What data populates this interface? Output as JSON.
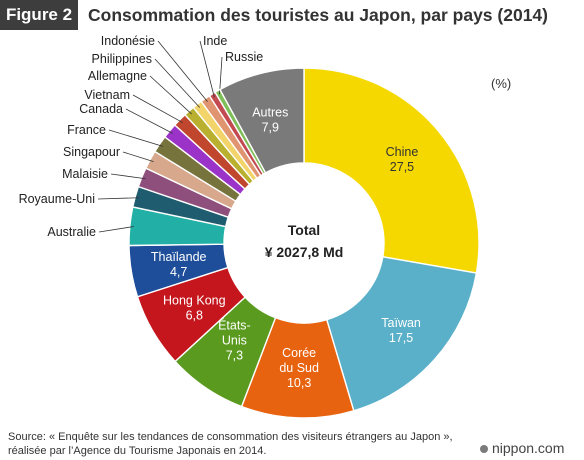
{
  "header": {
    "figure_label": "Figure 2",
    "title": "Consommation des touristes au Japon, par pays (2014)"
  },
  "unit_note": "(%)",
  "center": {
    "label": "Total",
    "value": "¥ 2027,8 Md"
  },
  "source": "Source: « Enquête sur les tendances de consommation des visiteurs étrangers au Japon », réalisée par l’Agence du Tourisme Japonais en 2014.",
  "logo": "nippon.com",
  "chart_data": {
    "type": "pie",
    "title": "Consommation des touristes au Japon, par pays (2014)",
    "unit": "%",
    "total_label": "Total",
    "total_value": "¥ 2027,8 Md",
    "slices": [
      {
        "name": "Chine",
        "value": 27.5,
        "label": "27,5",
        "color": "#f5d800"
      },
      {
        "name": "Taïwan",
        "value": 17.5,
        "label": "17,5",
        "color": "#5aafc9"
      },
      {
        "name": "Corée du Sud",
        "value": 10.3,
        "label": "10,3",
        "color": "#e8630f"
      },
      {
        "name": "États-Unis",
        "value": 7.3,
        "label": "7,3",
        "color": "#5a9a1e"
      },
      {
        "name": "Hong Kong",
        "value": 6.8,
        "label": "6,8",
        "color": "#c4161c"
      },
      {
        "name": "Thaïlande",
        "value": 4.7,
        "label": "4,7",
        "color": "#1e4e9a"
      },
      {
        "name": "Australie",
        "value": 3.5,
        "color": "#22b0a6"
      },
      {
        "name": "Royaume-Uni",
        "value": 1.9,
        "color": "#1f5c70"
      },
      {
        "name": "Malaisie",
        "value": 1.8,
        "color": "#8f4f7d"
      },
      {
        "name": "Singapour",
        "value": 1.7,
        "color": "#d7a88c"
      },
      {
        "name": "France",
        "value": 1.6,
        "color": "#77733c"
      },
      {
        "name": "Canada",
        "value": 1.4,
        "color": "#9b33c8"
      },
      {
        "name": "Vietnam",
        "value": 1.3,
        "color": "#c0462e"
      },
      {
        "name": "Allemagne",
        "value": 1.0,
        "color": "#b8b02e"
      },
      {
        "name": "Philippines",
        "value": 0.9,
        "color": "#f2d46a"
      },
      {
        "name": "Indonésie",
        "value": 0.9,
        "color": "#e09570"
      },
      {
        "name": "Inde",
        "value": 0.6,
        "color": "#c24a50"
      },
      {
        "name": "Russie",
        "value": 0.5,
        "color": "#7fbf5a"
      },
      {
        "name": "Autres",
        "value": 7.9,
        "label": "7,9",
        "color": "#7a7a7a"
      }
    ]
  }
}
